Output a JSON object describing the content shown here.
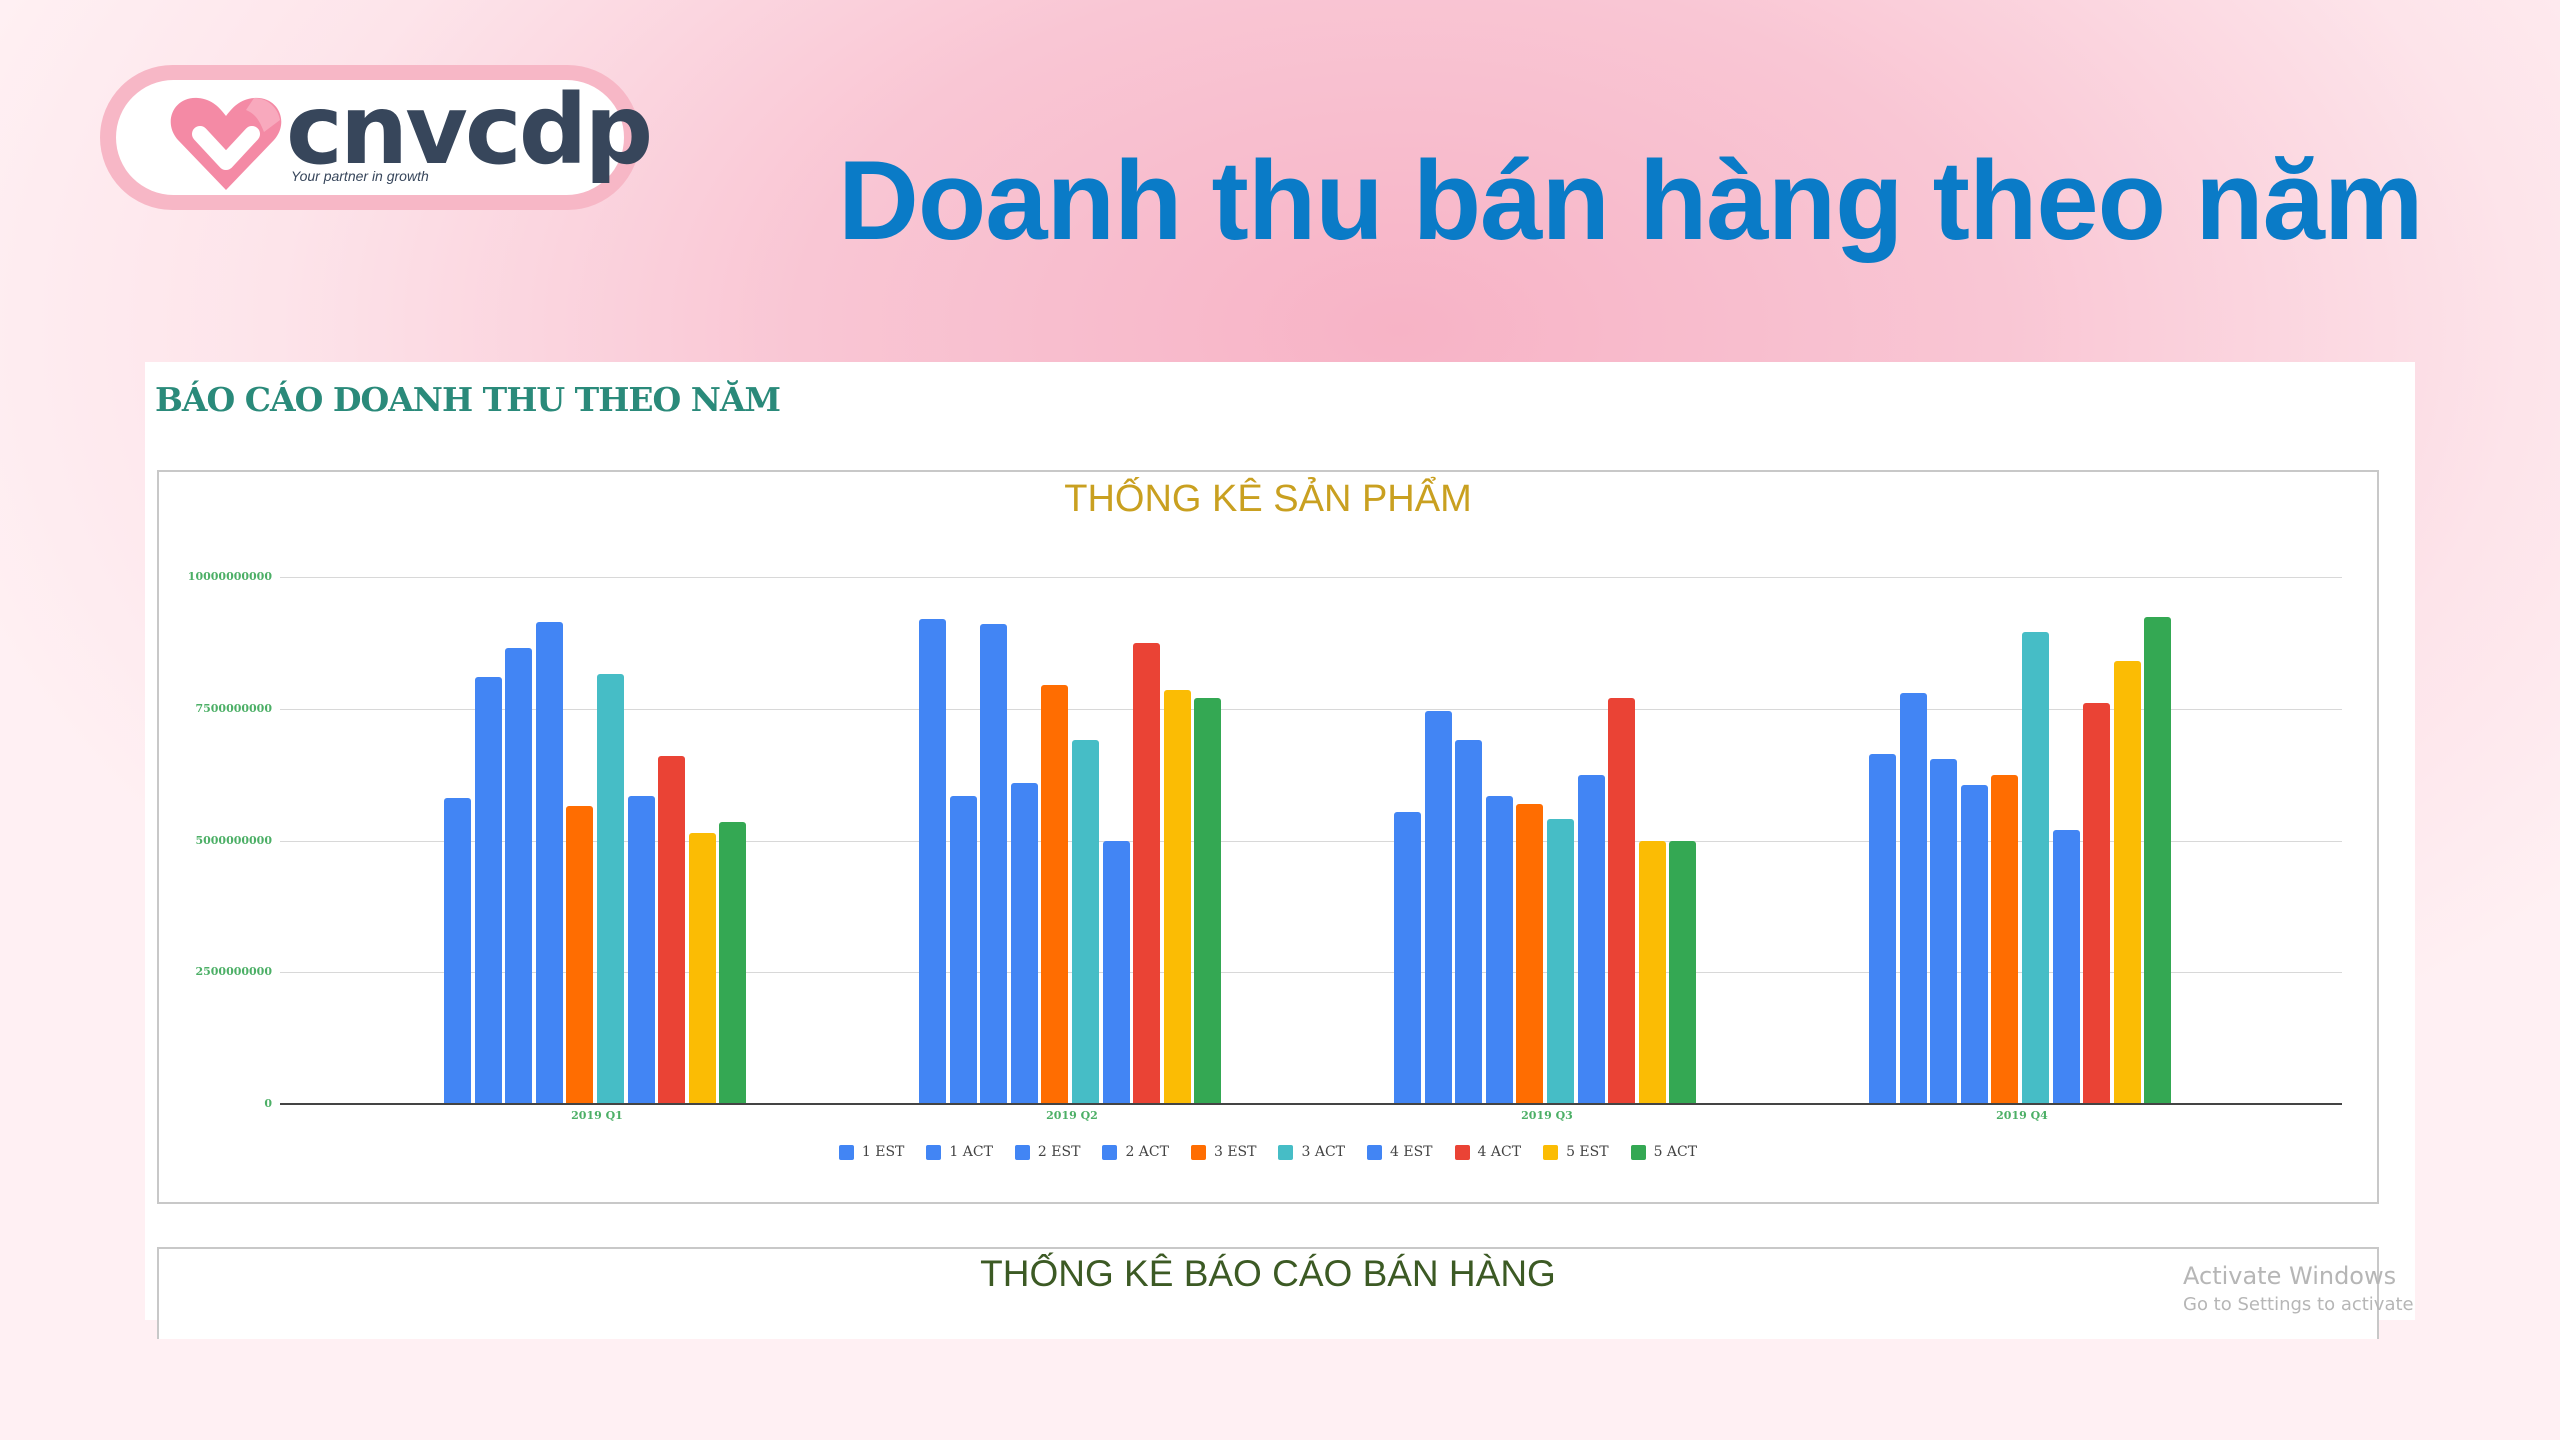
{
  "logo": {
    "wordmark": "cnvcdp",
    "tagline": "Your partner in growth",
    "heart_color": "#f48aa5"
  },
  "page": {
    "title": "Doanh thu bán hàng theo năm"
  },
  "report": {
    "heading": "BÁO CÁO DOANH THU THEO NĂM",
    "second_chart_title": "THỐNG KÊ BÁO CÁO BÁN HÀNG"
  },
  "watermark": {
    "line1": "Activate Windows",
    "line2": "Go to Settings to activate"
  },
  "chart_data": {
    "type": "bar",
    "title": "THỐNG KÊ SẢN PHẨM",
    "xlabel": "",
    "ylabel": "",
    "ylim": [
      0,
      10000000000
    ],
    "yticks": [
      "0",
      "2500000000",
      "5000000000",
      "7500000000",
      "10000000000"
    ],
    "grid": true,
    "legend_position": "bottom",
    "categories": [
      "2019 Q1",
      "2019 Q2",
      "2019 Q3",
      "2019 Q4"
    ],
    "series": [
      {
        "name": "1 EST",
        "color": "#4285f4",
        "values": [
          5800000000,
          9200000000,
          5550000000,
          6650000000
        ]
      },
      {
        "name": "1 ACT",
        "color": "#4285f4",
        "values": [
          8100000000,
          5850000000,
          7450000000,
          7800000000
        ]
      },
      {
        "name": "2 EST",
        "color": "#4285f4",
        "values": [
          8650000000,
          9100000000,
          6900000000,
          6550000000
        ]
      },
      {
        "name": "2 ACT",
        "color": "#4285f4",
        "values": [
          9150000000,
          6100000000,
          5850000000,
          6050000000
        ]
      },
      {
        "name": "3 EST",
        "color": "#ff6d01",
        "values": [
          5650000000,
          7950000000,
          5700000000,
          6250000000
        ]
      },
      {
        "name": "3 ACT",
        "color": "#46bdc6",
        "values": [
          8150000000,
          6900000000,
          5400000000,
          8950000000
        ]
      },
      {
        "name": "4 EST",
        "color": "#4285f4",
        "values": [
          5850000000,
          5000000000,
          6250000000,
          5200000000
        ]
      },
      {
        "name": "4 ACT",
        "color": "#ea4335",
        "values": [
          6600000000,
          8750000000,
          7700000000,
          7600000000
        ]
      },
      {
        "name": "5 EST",
        "color": "#fbbc04",
        "values": [
          5150000000,
          7850000000,
          5000000000,
          8400000000
        ]
      },
      {
        "name": "5 ACT",
        "color": "#34a853",
        "values": [
          5350000000,
          7700000000,
          5000000000,
          9250000000
        ]
      }
    ]
  }
}
